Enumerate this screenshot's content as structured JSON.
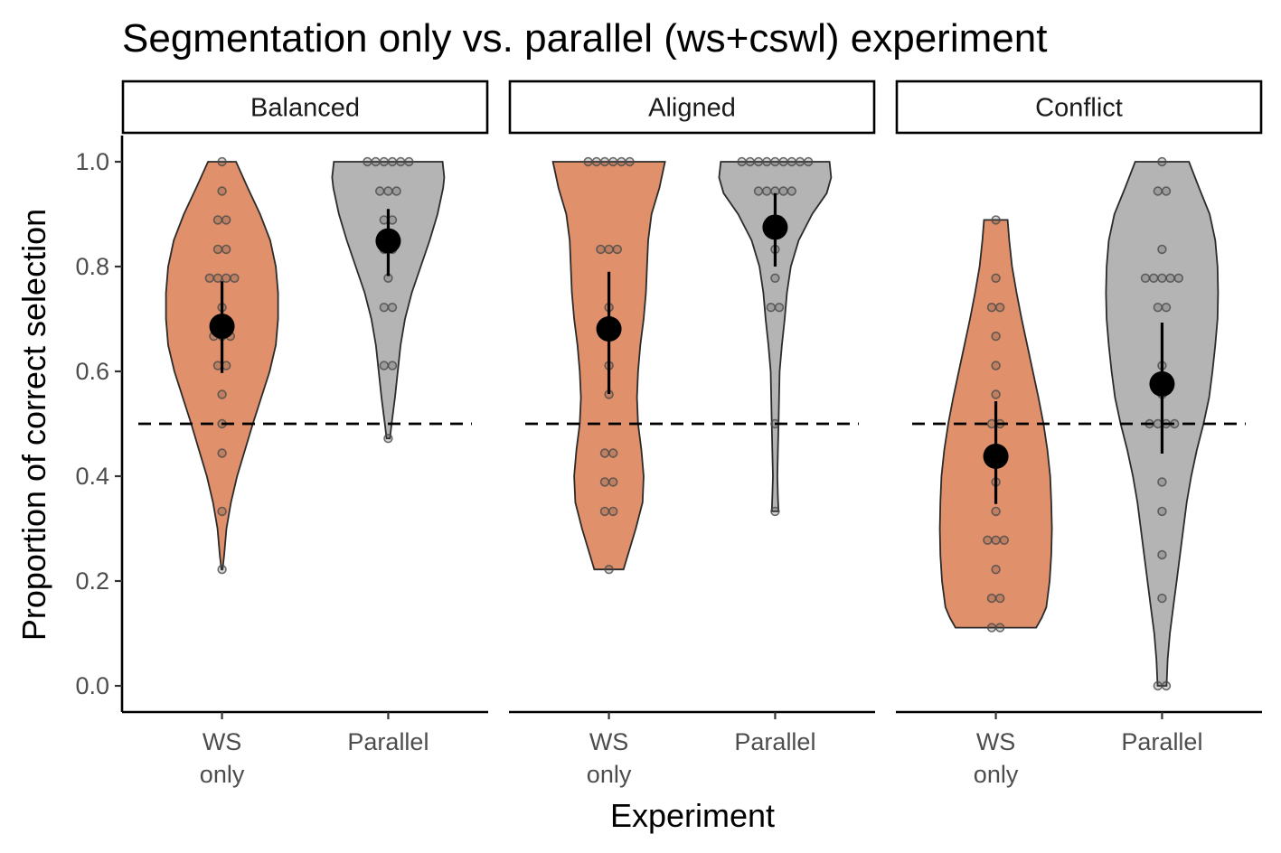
{
  "colors": {
    "ws_only": "#e0906a",
    "parallel": "#b4b4b4",
    "outline": "#2b2b2b",
    "points": "#4a4a4a",
    "summary": "#000000",
    "chance_line": "#000000"
  },
  "chart_data": {
    "type": "violin",
    "title": "Segmentation only vs. parallel (ws+cswl) experiment",
    "xlabel": "Experiment",
    "ylabel": "Proportion of correct selection",
    "ylim": [
      -0.05,
      1.05
    ],
    "yticks": [
      "0.0",
      "0.2",
      "0.4",
      "0.6",
      "0.8",
      "1.0"
    ],
    "ytick_values": [
      0.0,
      0.2,
      0.4,
      0.6,
      0.8,
      1.0
    ],
    "reference_line": {
      "y": 0.5,
      "style": "dashed"
    },
    "grid": false,
    "legend": "none",
    "categories": [
      {
        "key": "ws_only",
        "label_lines": [
          "WS",
          "only"
        ]
      },
      {
        "key": "parallel",
        "label_lines": [
          "Parallel"
        ]
      }
    ],
    "facets": [
      {
        "name": "Balanced",
        "groups": [
          {
            "category": "WS only",
            "mean": 0.686,
            "ci": [
              0.597,
              0.772
            ],
            "points": [
              1.0,
              0.944,
              0.889,
              0.889,
              0.833,
              0.833,
              0.778,
              0.778,
              0.778,
              0.778,
              0.722,
              0.667,
              0.667,
              0.667,
              0.611,
              0.611,
              0.556,
              0.5,
              0.444,
              0.333,
              0.222
            ],
            "density": [
              [
                0.222,
                0.01
              ],
              [
                0.25,
                0.04
              ],
              [
                0.3,
                0.08
              ],
              [
                0.35,
                0.16
              ],
              [
                0.4,
                0.27
              ],
              [
                0.45,
                0.41
              ],
              [
                0.5,
                0.55
              ],
              [
                0.55,
                0.7
              ],
              [
                0.6,
                0.85
              ],
              [
                0.65,
                0.96
              ],
              [
                0.7,
                1.0
              ],
              [
                0.75,
                1.0
              ],
              [
                0.8,
                0.96
              ],
              [
                0.85,
                0.86
              ],
              [
                0.9,
                0.68
              ],
              [
                0.95,
                0.46
              ],
              [
                1.0,
                0.25
              ]
            ]
          },
          {
            "category": "Parallel",
            "mean": 0.849,
            "ci": [
              0.782,
              0.91
            ],
            "points": [
              1.0,
              1.0,
              1.0,
              1.0,
              1.0,
              1.0,
              0.944,
              0.944,
              0.944,
              0.889,
              0.889,
              0.833,
              0.833,
              0.778,
              0.722,
              0.722,
              0.611,
              0.611,
              0.472
            ],
            "density": [
              [
                0.472,
                0.03
              ],
              [
                0.5,
                0.06
              ],
              [
                0.55,
                0.12
              ],
              [
                0.6,
                0.17
              ],
              [
                0.65,
                0.22
              ],
              [
                0.7,
                0.3
              ],
              [
                0.75,
                0.42
              ],
              [
                0.8,
                0.58
              ],
              [
                0.85,
                0.74
              ],
              [
                0.9,
                0.88
              ],
              [
                0.95,
                0.98
              ],
              [
                0.97,
                1.0
              ],
              [
                1.0,
                0.97
              ]
            ]
          }
        ]
      },
      {
        "name": "Aligned",
        "groups": [
          {
            "category": "WS only",
            "mean": 0.681,
            "ci": [
              0.557,
              0.79
            ],
            "points": [
              1.0,
              1.0,
              1.0,
              1.0,
              1.0,
              1.0,
              0.833,
              0.833,
              0.833,
              0.722,
              0.667,
              0.611,
              0.556,
              0.444,
              0.444,
              0.389,
              0.389,
              0.333,
              0.333,
              0.222
            ],
            "density": [
              [
                0.222,
                0.26
              ],
              [
                0.3,
                0.48
              ],
              [
                0.35,
                0.6
              ],
              [
                0.4,
                0.62
              ],
              [
                0.45,
                0.58
              ],
              [
                0.5,
                0.52
              ],
              [
                0.55,
                0.5
              ],
              [
                0.6,
                0.52
              ],
              [
                0.65,
                0.56
              ],
              [
                0.7,
                0.62
              ],
              [
                0.75,
                0.66
              ],
              [
                0.8,
                0.68
              ],
              [
                0.85,
                0.7
              ],
              [
                0.9,
                0.76
              ],
              [
                0.95,
                0.9
              ],
              [
                1.0,
                1.0
              ]
            ]
          },
          {
            "category": "Parallel",
            "mean": 0.875,
            "ci": [
              0.8,
              0.94
            ],
            "points": [
              1.0,
              1.0,
              1.0,
              1.0,
              1.0,
              1.0,
              1.0,
              1.0,
              1.0,
              0.944,
              0.944,
              0.944,
              0.944,
              0.944,
              0.889,
              0.889,
              0.833,
              0.778,
              0.722,
              0.722,
              0.5,
              0.333
            ],
            "density": [
              [
                0.333,
                0.06
              ],
              [
                0.36,
                0.05
              ],
              [
                0.4,
                0.04
              ],
              [
                0.45,
                0.05
              ],
              [
                0.5,
                0.06
              ],
              [
                0.55,
                0.07
              ],
              [
                0.6,
                0.08
              ],
              [
                0.65,
                0.12
              ],
              [
                0.7,
                0.17
              ],
              [
                0.75,
                0.21
              ],
              [
                0.8,
                0.28
              ],
              [
                0.85,
                0.42
              ],
              [
                0.9,
                0.66
              ],
              [
                0.94,
                0.92
              ],
              [
                0.97,
                1.0
              ],
              [
                1.0,
                0.97
              ]
            ]
          }
        ]
      },
      {
        "name": "Conflict",
        "groups": [
          {
            "category": "WS only",
            "mean": 0.438,
            "ci": [
              0.347,
              0.543
            ],
            "points": [
              0.889,
              0.778,
              0.722,
              0.722,
              0.667,
              0.611,
              0.556,
              0.5,
              0.5,
              0.444,
              0.389,
              0.333,
              0.278,
              0.278,
              0.278,
              0.222,
              0.167,
              0.167,
              0.111,
              0.111
            ],
            "density": [
              [
                0.111,
                0.72
              ],
              [
                0.13,
                0.82
              ],
              [
                0.15,
                0.9
              ],
              [
                0.2,
                0.96
              ],
              [
                0.25,
                0.99
              ],
              [
                0.3,
                1.0
              ],
              [
                0.35,
                0.99
              ],
              [
                0.4,
                0.97
              ],
              [
                0.45,
                0.92
              ],
              [
                0.5,
                0.85
              ],
              [
                0.55,
                0.76
              ],
              [
                0.6,
                0.66
              ],
              [
                0.65,
                0.56
              ],
              [
                0.7,
                0.46
              ],
              [
                0.75,
                0.37
              ],
              [
                0.8,
                0.29
              ],
              [
                0.85,
                0.24
              ],
              [
                0.889,
                0.21
              ]
            ]
          },
          {
            "category": "Parallel",
            "mean": 0.576,
            "ci": [
              0.443,
              0.693
            ],
            "points": [
              1.0,
              0.944,
              0.944,
              0.833,
              0.778,
              0.778,
              0.778,
              0.778,
              0.778,
              0.722,
              0.722,
              0.611,
              0.556,
              0.5,
              0.5,
              0.5,
              0.5,
              0.389,
              0.333,
              0.25,
              0.167,
              0.0,
              0.0
            ],
            "density": [
              [
                0.0,
                0.08
              ],
              [
                0.05,
                0.1
              ],
              [
                0.1,
                0.14
              ],
              [
                0.15,
                0.2
              ],
              [
                0.2,
                0.26
              ],
              [
                0.25,
                0.32
              ],
              [
                0.3,
                0.38
              ],
              [
                0.35,
                0.44
              ],
              [
                0.4,
                0.52
              ],
              [
                0.45,
                0.62
              ],
              [
                0.5,
                0.74
              ],
              [
                0.55,
                0.84
              ],
              [
                0.6,
                0.9
              ],
              [
                0.65,
                0.95
              ],
              [
                0.7,
                0.99
              ],
              [
                0.75,
                1.0
              ],
              [
                0.8,
                0.99
              ],
              [
                0.85,
                0.95
              ],
              [
                0.9,
                0.85
              ],
              [
                0.95,
                0.66
              ],
              [
                1.0,
                0.48
              ]
            ]
          }
        ]
      }
    ]
  }
}
